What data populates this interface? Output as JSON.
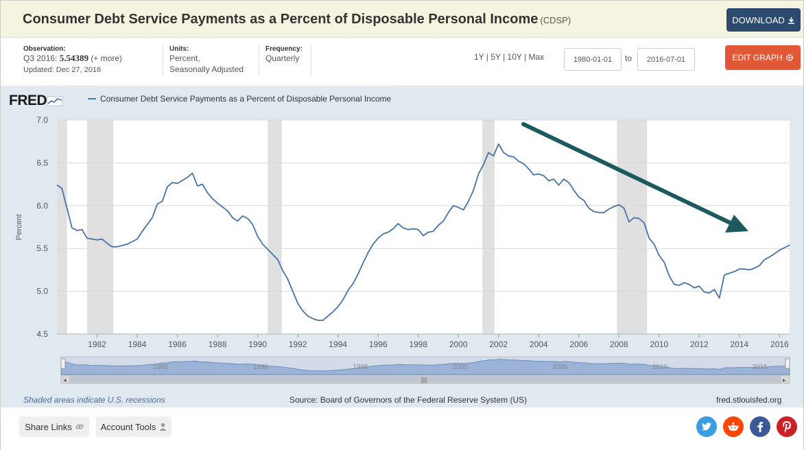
{
  "header": {
    "title": "Consumer Debt Service Payments as a Percent of Disposable Personal Income",
    "series_code": "(CDSP)",
    "download_label": "DOWNLOAD"
  },
  "meta": {
    "observation_label": "Observation:",
    "observation_period": "Q3 2016:",
    "observation_value": "5.54389",
    "observation_more": "(+ more)",
    "updated": "Updated: Dec 27, 2016",
    "units_label": "Units:",
    "units_line1": "Percent,",
    "units_line2": "Seasonally Adjusted",
    "frequency_label": "Frequency:",
    "frequency_value": "Quarterly",
    "ranges": [
      "1Y",
      "5Y",
      "10Y",
      "Max"
    ],
    "start_date": "1980-01-01",
    "to_label": "to",
    "end_date": "2016-07-01",
    "edit_label": "EDIT GRAPH"
  },
  "graph": {
    "logo": "FRED",
    "legend": "Consumer Debt Service Payments as a Percent of Disposable Personal Income",
    "recession_note": "Shaded areas indicate U.S. recessions",
    "source": "Source: Board of Governors of the Federal Reserve System (US)",
    "url": "fred.stlouisfed.org"
  },
  "bottom": {
    "share_label": "Share Links",
    "account_label": "Account Tools"
  },
  "colors": {
    "series": "#4572a7",
    "recession": "#e0e0e0",
    "arrow": "#1c5a5e",
    "download_btn": "#2b4a6d",
    "edit_btn": "#e15836"
  },
  "chart_data": {
    "type": "line",
    "title": "",
    "xlabel": "",
    "ylabel": "Percent",
    "xlim": [
      1980.0,
      2016.5
    ],
    "ylim": [
      4.5,
      7.0
    ],
    "yticks": [
      4.5,
      5.0,
      5.5,
      6.0,
      6.5,
      7.0
    ],
    "xticks": [
      1982,
      1984,
      1986,
      1988,
      1990,
      1992,
      1994,
      1996,
      1998,
      2000,
      2002,
      2004,
      2006,
      2008,
      2010,
      2012,
      2014,
      2016
    ],
    "navigator_labels": [
      1985,
      1990,
      1995,
      2000,
      2005,
      2010,
      2015
    ],
    "grid": true,
    "recessions": [
      [
        1980.0,
        1980.5
      ],
      [
        1981.5,
        1982.8
      ],
      [
        1990.5,
        1991.2
      ],
      [
        2001.2,
        2001.8
      ],
      [
        2007.9,
        2009.4
      ]
    ],
    "series": [
      {
        "name": "Consumer Debt Service Payments as a Percent of Disposable Personal Income",
        "points": [
          [
            1980.0,
            6.24
          ],
          [
            1980.25,
            6.2
          ],
          [
            1980.5,
            5.97
          ],
          [
            1980.75,
            5.74
          ],
          [
            1981.0,
            5.71
          ],
          [
            1981.25,
            5.72
          ],
          [
            1981.5,
            5.62
          ],
          [
            1982.0,
            5.6
          ],
          [
            1982.25,
            5.61
          ],
          [
            1982.5,
            5.56
          ],
          [
            1982.75,
            5.52
          ],
          [
            1983.0,
            5.52
          ],
          [
            1983.5,
            5.55
          ],
          [
            1984.0,
            5.61
          ],
          [
            1984.25,
            5.7
          ],
          [
            1984.75,
            5.86
          ],
          [
            1985.0,
            6.02
          ],
          [
            1985.25,
            6.05
          ],
          [
            1985.5,
            6.22
          ],
          [
            1985.75,
            6.27
          ],
          [
            1986.0,
            6.26
          ],
          [
            1986.5,
            6.33
          ],
          [
            1986.75,
            6.38
          ],
          [
            1987.0,
            6.23
          ],
          [
            1987.25,
            6.25
          ],
          [
            1987.5,
            6.15
          ],
          [
            1987.75,
            6.08
          ],
          [
            1988.0,
            6.03
          ],
          [
            1988.5,
            5.94
          ],
          [
            1988.75,
            5.86
          ],
          [
            1989.0,
            5.82
          ],
          [
            1989.25,
            5.88
          ],
          [
            1989.5,
            5.85
          ],
          [
            1989.75,
            5.78
          ],
          [
            1990.0,
            5.64
          ],
          [
            1990.25,
            5.55
          ],
          [
            1990.5,
            5.49
          ],
          [
            1990.75,
            5.43
          ],
          [
            1991.0,
            5.37
          ],
          [
            1991.25,
            5.24
          ],
          [
            1991.5,
            5.14
          ],
          [
            1991.75,
            5.0
          ],
          [
            1992.0,
            4.86
          ],
          [
            1992.25,
            4.77
          ],
          [
            1992.5,
            4.71
          ],
          [
            1992.75,
            4.68
          ],
          [
            1993.0,
            4.66
          ],
          [
            1993.25,
            4.66
          ],
          [
            1993.5,
            4.71
          ],
          [
            1993.75,
            4.76
          ],
          [
            1994.0,
            4.82
          ],
          [
            1994.25,
            4.9
          ],
          [
            1994.5,
            5.01
          ],
          [
            1994.75,
            5.09
          ],
          [
            1995.0,
            5.2
          ],
          [
            1995.25,
            5.33
          ],
          [
            1995.5,
            5.45
          ],
          [
            1995.75,
            5.55
          ],
          [
            1996.0,
            5.62
          ],
          [
            1996.25,
            5.67
          ],
          [
            1996.5,
            5.69
          ],
          [
            1996.75,
            5.73
          ],
          [
            1997.0,
            5.79
          ],
          [
            1997.25,
            5.74
          ],
          [
            1997.5,
            5.72
          ],
          [
            1997.75,
            5.73
          ],
          [
            1998.0,
            5.72
          ],
          [
            1998.25,
            5.65
          ],
          [
            1998.5,
            5.69
          ],
          [
            1998.75,
            5.7
          ],
          [
            1999.0,
            5.77
          ],
          [
            1999.25,
            5.82
          ],
          [
            1999.5,
            5.92
          ],
          [
            1999.75,
            6.0
          ],
          [
            2000.0,
            5.98
          ],
          [
            2000.25,
            5.95
          ],
          [
            2000.5,
            6.05
          ],
          [
            2000.75,
            6.18
          ],
          [
            2001.0,
            6.37
          ],
          [
            2001.25,
            6.48
          ],
          [
            2001.5,
            6.62
          ],
          [
            2001.75,
            6.58
          ],
          [
            2002.0,
            6.72
          ],
          [
            2002.25,
            6.62
          ],
          [
            2002.5,
            6.58
          ],
          [
            2002.75,
            6.57
          ],
          [
            2003.0,
            6.52
          ],
          [
            2003.25,
            6.49
          ],
          [
            2003.5,
            6.43
          ],
          [
            2003.75,
            6.36
          ],
          [
            2004.0,
            6.37
          ],
          [
            2004.25,
            6.35
          ],
          [
            2004.5,
            6.29
          ],
          [
            2004.75,
            6.31
          ],
          [
            2005.0,
            6.24
          ],
          [
            2005.25,
            6.31
          ],
          [
            2005.5,
            6.27
          ],
          [
            2005.75,
            6.18
          ],
          [
            2006.0,
            6.1
          ],
          [
            2006.25,
            6.06
          ],
          [
            2006.5,
            5.97
          ],
          [
            2006.75,
            5.93
          ],
          [
            2007.0,
            5.92
          ],
          [
            2007.25,
            5.92
          ],
          [
            2007.5,
            5.96
          ],
          [
            2007.75,
            5.99
          ],
          [
            2008.0,
            6.01
          ],
          [
            2008.25,
            5.97
          ],
          [
            2008.5,
            5.81
          ],
          [
            2008.75,
            5.86
          ],
          [
            2009.0,
            5.85
          ],
          [
            2009.25,
            5.8
          ],
          [
            2009.5,
            5.62
          ],
          [
            2009.75,
            5.55
          ],
          [
            2010.0,
            5.42
          ],
          [
            2010.25,
            5.34
          ],
          [
            2010.5,
            5.18
          ],
          [
            2010.75,
            5.08
          ],
          [
            2011.0,
            5.07
          ],
          [
            2011.25,
            5.1
          ],
          [
            2011.5,
            5.08
          ],
          [
            2011.75,
            5.04
          ],
          [
            2012.0,
            5.06
          ],
          [
            2012.25,
            4.99
          ],
          [
            2012.5,
            4.98
          ],
          [
            2012.75,
            5.02
          ],
          [
            2013.0,
            4.92
          ],
          [
            2013.25,
            5.19
          ],
          [
            2013.5,
            5.21
          ],
          [
            2013.75,
            5.23
          ],
          [
            2014.0,
            5.26
          ],
          [
            2014.25,
            5.26
          ],
          [
            2014.5,
            5.25
          ],
          [
            2014.75,
            5.27
          ],
          [
            2015.0,
            5.3
          ],
          [
            2015.25,
            5.37
          ],
          [
            2015.5,
            5.4
          ],
          [
            2015.75,
            5.44
          ],
          [
            2016.0,
            5.48
          ],
          [
            2016.25,
            5.51
          ],
          [
            2016.5,
            5.54
          ]
        ]
      }
    ]
  }
}
